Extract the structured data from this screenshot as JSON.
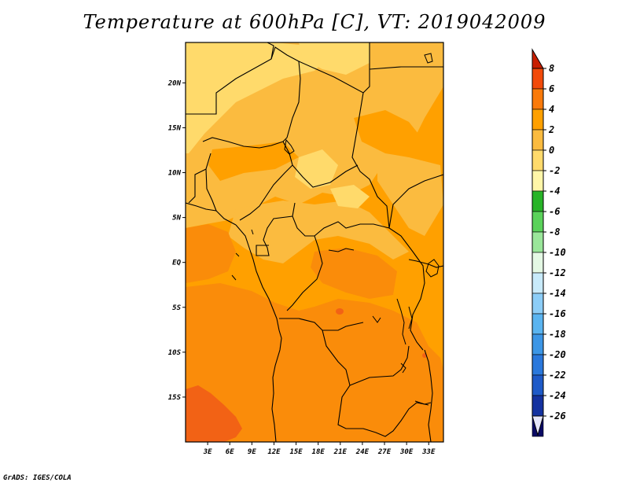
{
  "title": "Temperature at 600hPa [C], VT: 2019042009",
  "credit": "GrADS: IGES/COLA",
  "colors": {
    "bg_warm": "#ffa000",
    "light_band": "#fbbb3f",
    "yellow_band": "#ffda6b",
    "deep_band": "#fa8c0a",
    "hot_band": "#f26215",
    "boundary": "#000000"
  },
  "chart_data": {
    "type": "heatmap",
    "title": "Temperature at 600hPa [C], VT: 2019042009",
    "variable": "Temperature",
    "level": "600hPa",
    "units": "C",
    "valid_time": "2019042009",
    "xlim": [
      0,
      35
    ],
    "ylim": [
      -20,
      24.5
    ],
    "x_ticks": [
      {
        "value": 3,
        "label": "3E"
      },
      {
        "value": 6,
        "label": "6E"
      },
      {
        "value": 9,
        "label": "9E"
      },
      {
        "value": 12,
        "label": "12E"
      },
      {
        "value": 15,
        "label": "15E"
      },
      {
        "value": 18,
        "label": "18E"
      },
      {
        "value": 21,
        "label": "21E"
      },
      {
        "value": 24,
        "label": "24E"
      },
      {
        "value": 27,
        "label": "27E"
      },
      {
        "value": 30,
        "label": "30E"
      },
      {
        "value": 33,
        "label": "33E"
      }
    ],
    "y_ticks": [
      {
        "value": 20,
        "label": "20N"
      },
      {
        "value": 15,
        "label": "15N"
      },
      {
        "value": 10,
        "label": "10N"
      },
      {
        "value": 5,
        "label": "5N"
      },
      {
        "value": 0,
        "label": "EQ"
      },
      {
        "value": -5,
        "label": "5S"
      },
      {
        "value": -10,
        "label": "10S"
      },
      {
        "value": -15,
        "label": "15S"
      }
    ],
    "colorbar": {
      "orientation": "vertical",
      "placement": "right",
      "levels": [
        {
          "label": "8",
          "color": "#dc2c00"
        },
        {
          "label": "6",
          "color": "#f24a0a"
        },
        {
          "label": "4",
          "color": "#fa7a0a"
        },
        {
          "label": "2",
          "color": "#ffa000"
        },
        {
          "label": "0",
          "color": "#fbbb3f"
        },
        {
          "label": "-2",
          "color": "#ffda6b"
        },
        {
          "label": "-4",
          "color": "#fff6a8"
        },
        {
          "label": "-6",
          "color": "#28b428"
        },
        {
          "label": "-8",
          "color": "#5ad25a"
        },
        {
          "label": "-10",
          "color": "#9ae69a"
        },
        {
          "label": "-12",
          "color": "#e4f8e4"
        },
        {
          "label": "-14",
          "color": "#c8eafa"
        },
        {
          "label": "-16",
          "color": "#8ccdf7"
        },
        {
          "label": "-18",
          "color": "#5ab4f0"
        },
        {
          "label": "-20",
          "color": "#3c96e6"
        },
        {
          "label": "-22",
          "color": "#2a78dc"
        },
        {
          "label": "-24",
          "color": "#1e5ac8"
        },
        {
          "label": "-26",
          "color": "#1432a0"
        }
      ],
      "over_color": "#c81e00",
      "under_color": "#0a0a64",
      "under_tip_color": "#e6e6fa"
    }
  }
}
